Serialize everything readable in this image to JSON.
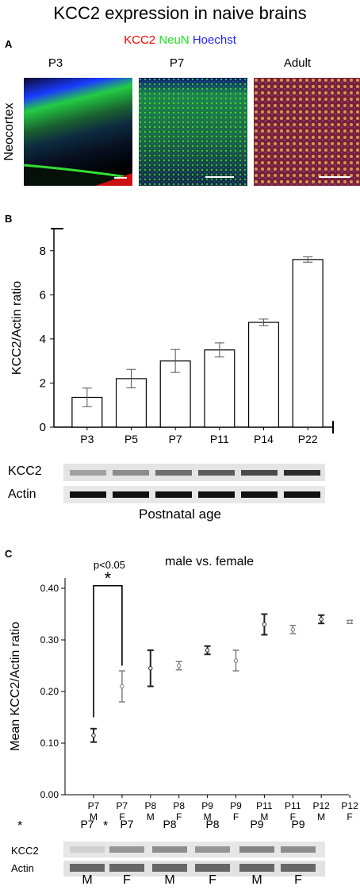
{
  "title": "KCC2 expression in naive brains",
  "panels": {
    "a": "A",
    "b": "B",
    "c": "C"
  },
  "stain": {
    "kcc2": "KCC2",
    "neun": "NeuN",
    "hoechst": "Hoechst",
    "colors": {
      "kcc2": "#ff0000",
      "neun": "#22dd22",
      "hoechst": "#2222ff"
    }
  },
  "micrographs": {
    "row_label": "Neocortex",
    "timepoints": [
      "P3",
      "P7",
      "Adult"
    ]
  },
  "blot_b": {
    "xlabel": "Postnatal age",
    "rows": [
      "KCC2",
      "Actin"
    ]
  },
  "blot_c": {
    "stars": [
      "*",
      "*"
    ],
    "lanes": [
      "P7",
      "P7",
      "P8",
      "P8",
      "P9",
      "P9"
    ],
    "rows": [
      "KCC2",
      "Actin"
    ],
    "sex": [
      "M",
      "F",
      "M",
      "F",
      "M",
      "F"
    ]
  },
  "chart_data": [
    {
      "type": "bar",
      "title": "",
      "ylabel": "KCC2/Actin ratio",
      "xlabel": "",
      "categories": [
        "P3",
        "P5",
        "P7",
        "P11",
        "P14",
        "P22"
      ],
      "values": [
        1.35,
        2.2,
        3.0,
        3.5,
        4.75,
        7.6
      ],
      "errors": [
        0.42,
        0.42,
        0.52,
        0.32,
        0.15,
        0.12
      ],
      "ylim": [
        0,
        9
      ],
      "yticks": [
        0,
        2,
        4,
        6,
        8
      ],
      "grid": false
    },
    {
      "type": "scatter",
      "title": "male vs. female",
      "ylabel": "Mean KCC2/Actin ratio",
      "xlabel": "",
      "categories": [
        {
          "age": "P7",
          "sex": "M"
        },
        {
          "age": "P7",
          "sex": "F"
        },
        {
          "age": "P8",
          "sex": "M"
        },
        {
          "age": "P8",
          "sex": "F"
        },
        {
          "age": "P9",
          "sex": "M"
        },
        {
          "age": "P9",
          "sex": "F"
        },
        {
          "age": "P11",
          "sex": "M"
        },
        {
          "age": "P11",
          "sex": "F"
        },
        {
          "age": "P12",
          "sex": "M"
        },
        {
          "age": "P12",
          "sex": "F"
        }
      ],
      "values": [
        0.115,
        0.21,
        0.245,
        0.25,
        0.28,
        0.26,
        0.33,
        0.32,
        0.34,
        0.335
      ],
      "errors": [
        0.013,
        0.03,
        0.035,
        0.008,
        0.008,
        0.02,
        0.02,
        0.008,
        0.008,
        0.003
      ],
      "ylim": [
        0,
        0.42
      ],
      "yticks": [
        "0.00",
        "0.10",
        "0.20",
        "0.30",
        "0.40"
      ],
      "annotation": {
        "text": "p<0.05",
        "star": "*"
      },
      "grid": false
    }
  ]
}
